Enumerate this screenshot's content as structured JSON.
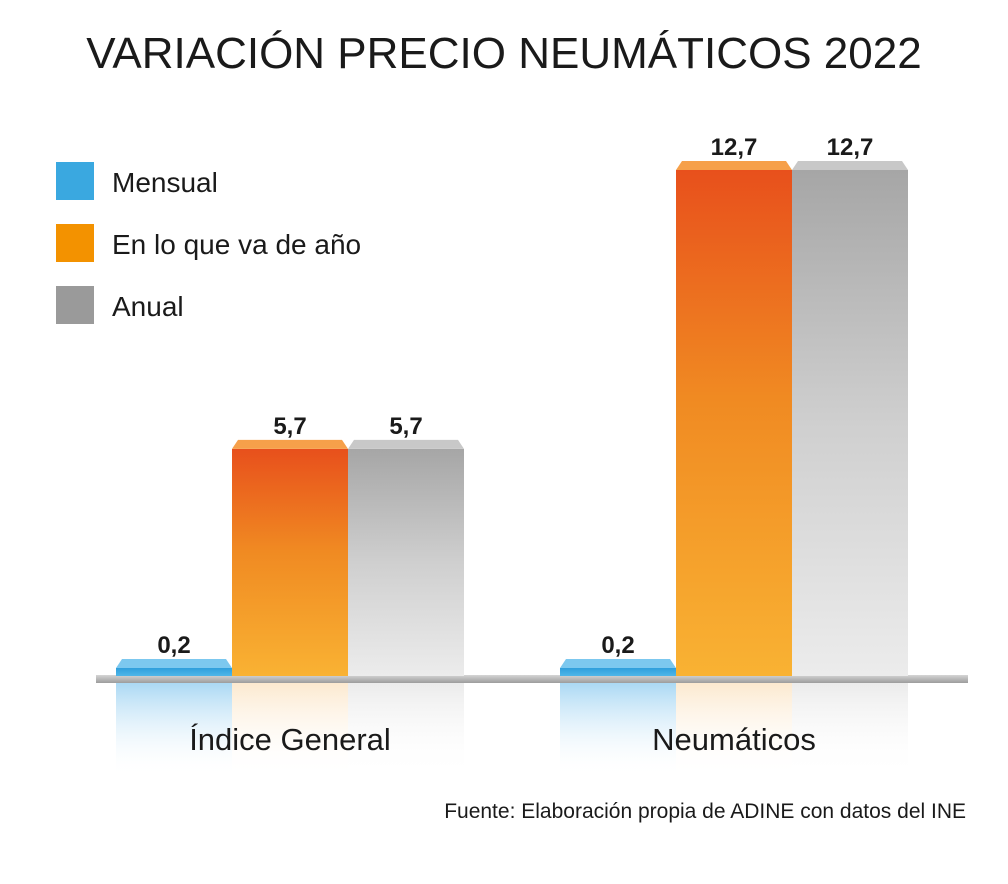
{
  "chart_data": {
    "type": "bar",
    "title": "VARIACIÓN PRECIO NEUMÁTICOS 2022",
    "categories": [
      "Índice General",
      "Neumáticos"
    ],
    "series": [
      {
        "name": "Mensual",
        "values": [
          0.2,
          0.2
        ],
        "labels": [
          "0,2",
          "0,2"
        ],
        "color": "#3aa8e0"
      },
      {
        "name": "En lo que va de año",
        "values": [
          5.7,
          12.7
        ],
        "labels": [
          "5,7",
          "12,7"
        ],
        "color": "#f39200"
      },
      {
        "name": "Anual",
        "values": [
          5.7,
          12.7
        ],
        "labels": [
          "5,7",
          "12,7"
        ],
        "color": "#9a9a9a"
      }
    ],
    "legend_position": "top-left",
    "grid": false,
    "source": "Fuente: Elaboración propia de ADINE con datos del INE"
  }
}
